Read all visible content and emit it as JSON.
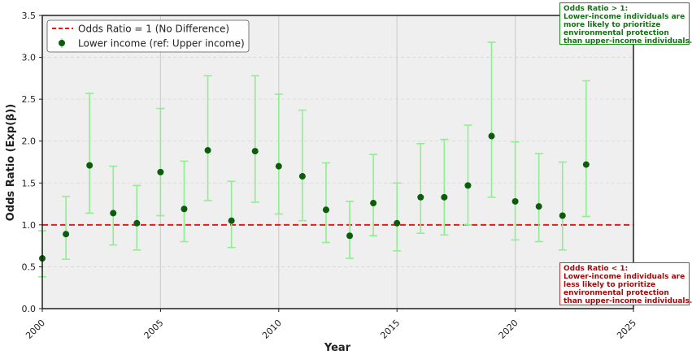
{
  "chart_data": {
    "type": "scatter",
    "xlabel": "Year",
    "ylabel": "Odds Ratio (Exp(β))",
    "xlim": [
      2000,
      2025
    ],
    "ylim": [
      0,
      3.5
    ],
    "x_ticks": [
      "2000",
      "2005",
      "2010",
      "2015",
      "2020",
      "2025"
    ],
    "y_ticks": [
      "0.0",
      "0.5",
      "1.0",
      "1.5",
      "2.0",
      "2.5",
      "3.0",
      "3.5"
    ],
    "grid": true,
    "legend_position": "top-left",
    "reference_line": {
      "label": "Odds Ratio = 1 (No Difference)",
      "y": 1.0,
      "color": "#e11d1d",
      "style": "dashed"
    },
    "series": [
      {
        "name": "Lower income (ref: Upper income)",
        "marker_color": "#0b5d0b",
        "errorbar_color": "#90ee90",
        "points": [
          {
            "x": 2000,
            "y": 0.6,
            "low": 0.38,
            "high": 0.93
          },
          {
            "x": 2001,
            "y": 0.89,
            "low": 0.59,
            "high": 1.34
          },
          {
            "x": 2002,
            "y": 1.71,
            "low": 1.14,
            "high": 2.57
          },
          {
            "x": 2003,
            "y": 1.14,
            "low": 0.76,
            "high": 1.7
          },
          {
            "x": 2004,
            "y": 1.02,
            "low": 0.7,
            "high": 1.47
          },
          {
            "x": 2005,
            "y": 1.63,
            "low": 1.11,
            "high": 2.39
          },
          {
            "x": 2006,
            "y": 1.19,
            "low": 0.8,
            "high": 1.76
          },
          {
            "x": 2007,
            "y": 1.89,
            "low": 1.29,
            "high": 2.78
          },
          {
            "x": 2008,
            "y": 1.05,
            "low": 0.73,
            "high": 1.52
          },
          {
            "x": 2009,
            "y": 1.88,
            "low": 1.27,
            "high": 2.78
          },
          {
            "x": 2010,
            "y": 1.7,
            "low": 1.13,
            "high": 2.56
          },
          {
            "x": 2011,
            "y": 1.58,
            "low": 1.05,
            "high": 2.37
          },
          {
            "x": 2012,
            "y": 1.18,
            "low": 0.79,
            "high": 1.74
          },
          {
            "x": 2013,
            "y": 0.87,
            "low": 0.6,
            "high": 1.28
          },
          {
            "x": 2014,
            "y": 1.26,
            "low": 0.87,
            "high": 1.84
          },
          {
            "x": 2015,
            "y": 1.02,
            "low": 0.69,
            "high": 1.5
          },
          {
            "x": 2016,
            "y": 1.33,
            "low": 0.9,
            "high": 1.97
          },
          {
            "x": 2017,
            "y": 1.33,
            "low": 0.88,
            "high": 2.02
          },
          {
            "x": 2018,
            "y": 1.47,
            "low": 1.0,
            "high": 2.19
          },
          {
            "x": 2019,
            "y": 2.06,
            "low": 1.33,
            "high": 3.18
          },
          {
            "x": 2020,
            "y": 1.28,
            "low": 0.82,
            "high": 1.99
          },
          {
            "x": 2021,
            "y": 1.22,
            "low": 0.8,
            "high": 1.85
          },
          {
            "x": 2022,
            "y": 1.11,
            "low": 0.7,
            "high": 1.75
          },
          {
            "x": 2023,
            "y": 1.72,
            "low": 1.1,
            "high": 2.72
          }
        ]
      }
    ],
    "annotations": {
      "above": {
        "lines": [
          "Odds Ratio > 1:",
          "Lower-income individuals are",
          "more likely to prioritize",
          "environmental protection",
          "than upper-income individuals."
        ],
        "color": "#1a6e1a"
      },
      "below": {
        "lines": [
          "Odds Ratio < 1:",
          "Lower-income individuals are",
          "less likely to prioritize",
          "environmental protection",
          "than upper-income individuals."
        ],
        "color": "#9a0b0b"
      }
    }
  }
}
